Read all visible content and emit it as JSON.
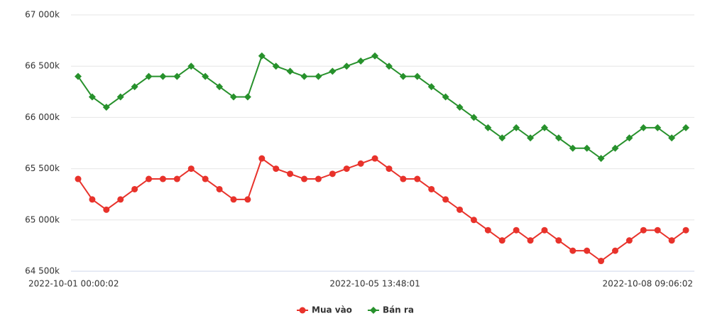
{
  "chart_data": {
    "type": "line",
    "categories": [
      "2022-10-01 00:00:02",
      null,
      null,
      null,
      null,
      null,
      null,
      null,
      null,
      null,
      null,
      null,
      null,
      null,
      null,
      null,
      null,
      null,
      null,
      null,
      null,
      "2022-10-05 13:48:01",
      null,
      null,
      null,
      null,
      null,
      null,
      null,
      null,
      null,
      null,
      null,
      null,
      null,
      null,
      null,
      null,
      null,
      null,
      null,
      null,
      null,
      "2022-10-08 09:06:02"
    ],
    "series": [
      {
        "name": "Mua vào",
        "color": "#e8322b",
        "marker": "circle",
        "values": [
          65400,
          65200,
          65100,
          65200,
          65300,
          65400,
          65400,
          65400,
          65500,
          65400,
          65300,
          65200,
          65200,
          65600,
          65500,
          65450,
          65400,
          65400,
          65450,
          65500,
          65550,
          65600,
          65500,
          65400,
          65400,
          65300,
          65200,
          65100,
          65000,
          64900,
          64800,
          64900,
          64800,
          64900,
          64800,
          64700,
          64700,
          64600,
          64700,
          64800,
          64900,
          64900,
          64800,
          64900
        ]
      },
      {
        "name": "Bán ra",
        "color": "#27912c",
        "marker": "diamond",
        "values": [
          66400,
          66200,
          66100,
          66200,
          66300,
          66400,
          66400,
          66400,
          66500,
          66400,
          66300,
          66200,
          66200,
          66600,
          66500,
          66450,
          66400,
          66400,
          66450,
          66500,
          66550,
          66600,
          66500,
          66400,
          66400,
          66300,
          66200,
          66100,
          66000,
          65900,
          65800,
          65900,
          65800,
          65900,
          65800,
          65700,
          65700,
          65600,
          65700,
          65800,
          65900,
          65900,
          65800,
          65900
        ]
      }
    ],
    "ylim": [
      64500,
      67000
    ],
    "yticks": [
      {
        "value": 64500,
        "label": "64 500k"
      },
      {
        "value": 65000,
        "label": "65 000k"
      },
      {
        "value": 65500,
        "label": "65 500k"
      },
      {
        "value": 66000,
        "label": "66 000k"
      },
      {
        "value": 66500,
        "label": "66 500k"
      },
      {
        "value": 67000,
        "label": "67 000k"
      }
    ],
    "grid": true,
    "legend": "bottom"
  }
}
